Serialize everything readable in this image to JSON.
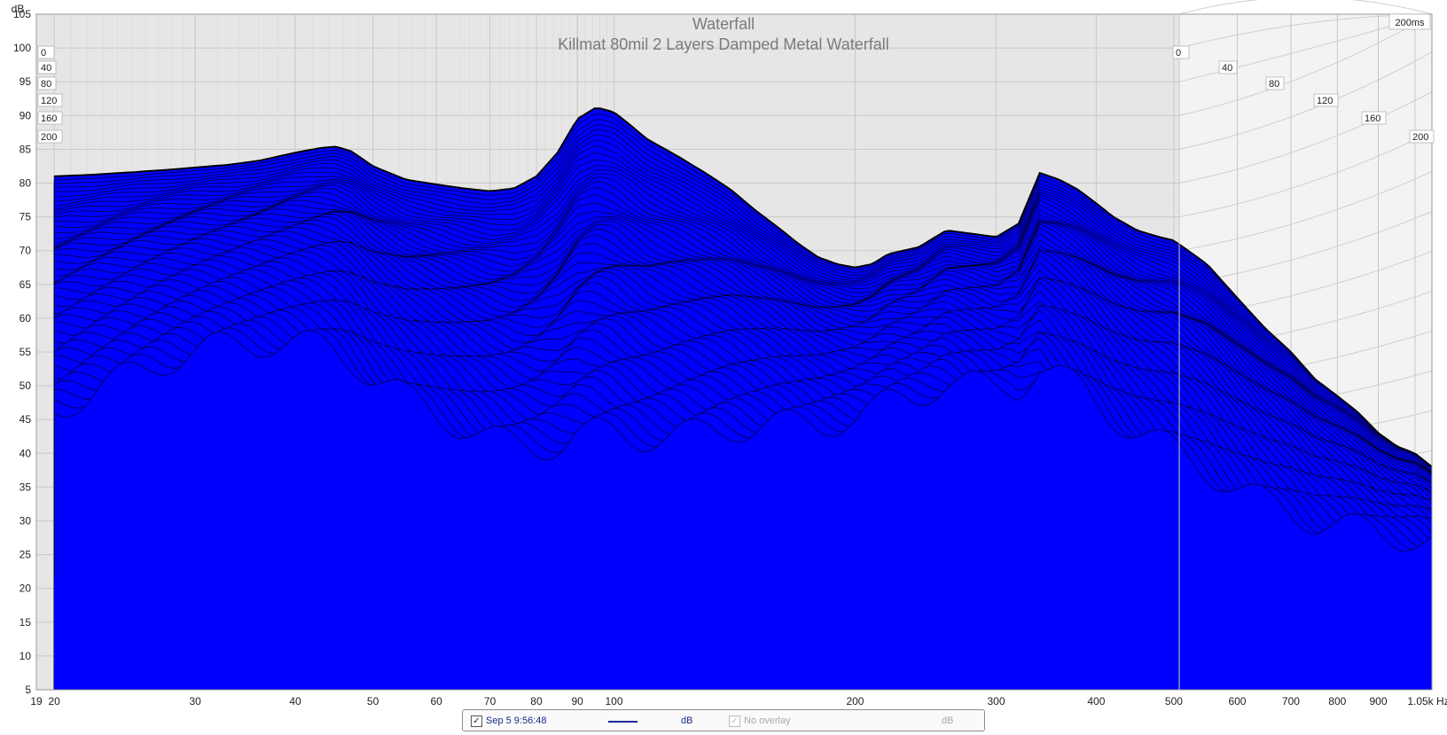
{
  "chart_data": {
    "type": "area",
    "title": "Waterfall",
    "subtitle": "Killmat 80mil 2 Layers Damped Metal Waterfall",
    "ylabel": "dB",
    "xlabel": "Hz",
    "x_scale": "log",
    "xlim": [
      19,
      1050
    ],
    "ylim": [
      5,
      105
    ],
    "y_ticks": [
      "5",
      "10",
      "15",
      "20",
      "25",
      "30",
      "35",
      "40",
      "45",
      "50",
      "55",
      "60",
      "65",
      "70",
      "75",
      "80",
      "85",
      "90",
      "95",
      "100",
      "105"
    ],
    "x_ticks": [
      {
        "value": 19,
        "label": "19"
      },
      {
        "value": 20,
        "label": "20"
      },
      {
        "value": 30,
        "label": "30"
      },
      {
        "value": 40,
        "label": "40"
      },
      {
        "value": 50,
        "label": "50"
      },
      {
        "value": 60,
        "label": "60"
      },
      {
        "value": 70,
        "label": "70"
      },
      {
        "value": 80,
        "label": "80"
      },
      {
        "value": 90,
        "label": "90"
      },
      {
        "value": 100,
        "label": "100"
      },
      {
        "value": 200,
        "label": "200"
      },
      {
        "value": 300,
        "label": "300"
      },
      {
        "value": 400,
        "label": "400"
      },
      {
        "value": 500,
        "label": "500"
      },
      {
        "value": 600,
        "label": "600"
      },
      {
        "value": 700,
        "label": "700"
      },
      {
        "value": 800,
        "label": "800"
      },
      {
        "value": 900,
        "label": "900"
      },
      {
        "value": 1050,
        "label": "1.05k Hz"
      }
    ],
    "time_axis_label": "200ms",
    "time_ticks": [
      "0",
      "40",
      "80",
      "120",
      "160",
      "200"
    ],
    "grid": true,
    "fill_color": "#0000ff",
    "line_color": "#000000",
    "series": [
      {
        "name": "Sep 5 9:56:48",
        "x": [
          20,
          22,
          25,
          28,
          30,
          33,
          36,
          40,
          43,
          45,
          47,
          50,
          55,
          60,
          65,
          70,
          75,
          80,
          85,
          90,
          95,
          100,
          105,
          110,
          120,
          130,
          140,
          150,
          160,
          170,
          180,
          190,
          200,
          210,
          220,
          240,
          260,
          280,
          300,
          320,
          340,
          360,
          380,
          400,
          420,
          450,
          480,
          500,
          550,
          600,
          650,
          700,
          750,
          800,
          850,
          900,
          950,
          1000,
          1050
        ],
        "y": [
          81,
          81.2,
          81.6,
          82,
          82.3,
          82.7,
          83.3,
          84.5,
          85.2,
          85.4,
          84.7,
          82.5,
          80.5,
          79.8,
          79.2,
          78.8,
          79.2,
          81,
          84.5,
          89.5,
          91.2,
          90.5,
          88.5,
          86.5,
          84,
          81.5,
          79,
          76,
          73.5,
          71,
          69,
          68,
          67.5,
          68,
          69.5,
          70.5,
          73,
          72.5,
          72,
          74,
          81.5,
          80.5,
          79,
          77,
          75,
          73,
          72,
          71.5,
          68,
          63,
          58.5,
          55,
          51,
          48.5,
          46,
          43,
          41,
          40,
          38
        ]
      }
    ]
  },
  "legend": {
    "series_label": "Sep 5 9:56:48",
    "series_unit": "dB",
    "overlay_label": "No overlay",
    "overlay_unit": "dB"
  }
}
